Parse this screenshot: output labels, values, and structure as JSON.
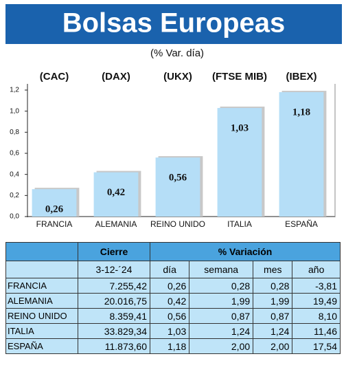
{
  "chart_data": {
    "type": "bar",
    "title": "Bolsas Europeas",
    "subtitle": "(% Var. día)",
    "index_labels": [
      "(CAC)",
      "(DAX)",
      "(UKX)",
      "(FTSE MIB)",
      "(IBEX)"
    ],
    "categories": [
      "FRANCIA",
      "ALEMANIA",
      "REINO UNIDO",
      "ITALIA",
      "ESPAÑA"
    ],
    "values": [
      0.26,
      0.42,
      0.56,
      1.03,
      1.18
    ],
    "value_labels": [
      "0,26",
      "0,42",
      "0,56",
      "1,03",
      "1,18"
    ],
    "color": "#b5def7",
    "ylim": [
      0,
      1.2
    ],
    "yticks": [
      {
        "value": 0,
        "label": "0,0"
      },
      {
        "value": 0.2,
        "label": "0,2"
      },
      {
        "value": 0.4,
        "label": "0,4"
      },
      {
        "value": 0.6,
        "label": "0,6"
      },
      {
        "value": 0.8,
        "label": "0,8"
      },
      {
        "value": 1.0,
        "label": "1,0"
      },
      {
        "value": 1.2,
        "label": "1,2"
      }
    ]
  },
  "table": {
    "group_headers": [
      "Cierre",
      "% Variación"
    ],
    "columns": [
      "3-12-´24",
      "día",
      "semana",
      "mes",
      "año"
    ],
    "rows": [
      [
        "FRANCIA",
        "7.255,42",
        "0,26",
        "0,28",
        "0,28",
        "-3,81"
      ],
      [
        "ALEMANIA",
        "20.016,75",
        "0,42",
        "1,99",
        "1,99",
        "19,49"
      ],
      [
        "REINO UNIDO",
        "8.359,41",
        "0,56",
        "0,87",
        "0,87",
        "8,10"
      ],
      [
        "ITALIA",
        "33.829,34",
        "1,03",
        "1,24",
        "1,24",
        "11,46"
      ],
      [
        "ESPAÑA",
        "11.873,60",
        "1,18",
        "2,00",
        "2,00",
        "17,54"
      ]
    ]
  }
}
